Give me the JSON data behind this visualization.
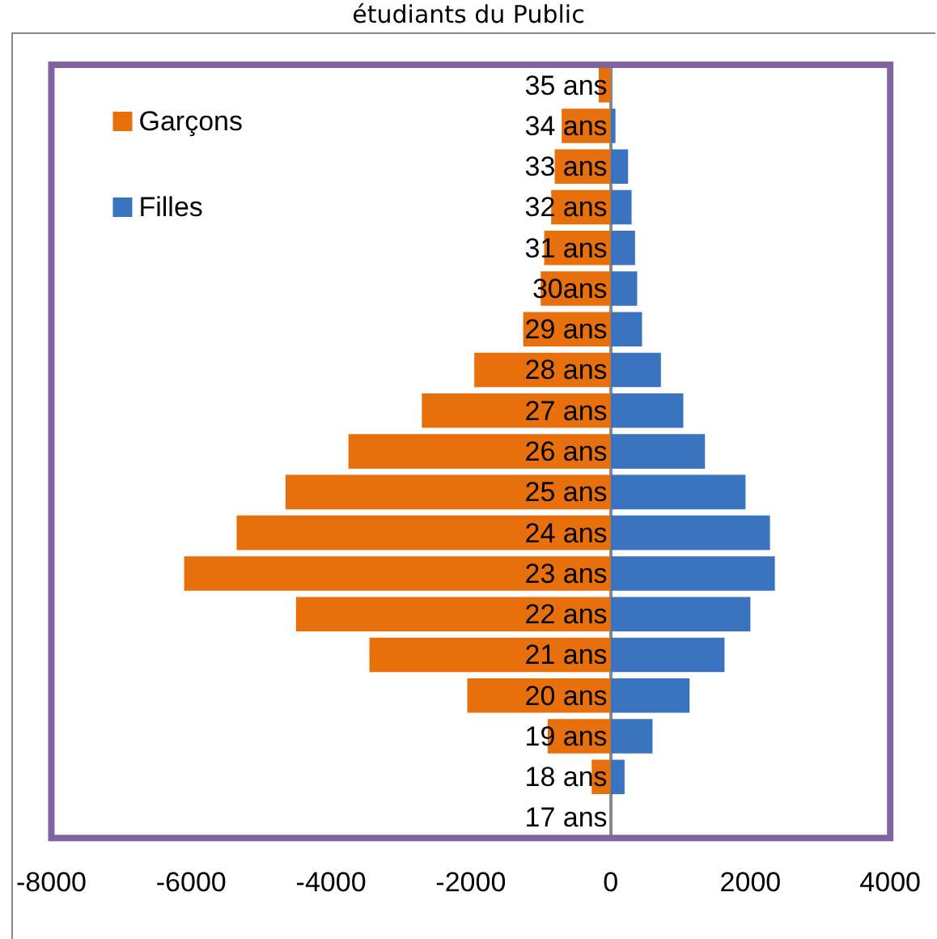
{
  "chart_data": {
    "type": "bar",
    "orientation": "horizontal",
    "stacked": true,
    "title": "étudiants du Public",
    "categories": [
      "35 ans",
      "34 ans",
      "33 ans",
      "32 ans",
      "31 ans",
      "30ans",
      "29 ans",
      "28 ans",
      "27 ans",
      "26 ans",
      "25 ans",
      "24 ans",
      "23 ans",
      "22 ans",
      "21 ans",
      "20 ans",
      "19 ans",
      "18 ans",
      "17 ans"
    ],
    "series": [
      {
        "name": "Garçons",
        "color": "#e8700c",
        "values": [
          -170,
          -700,
          -800,
          -850,
          -950,
          -1000,
          -1250,
          -1950,
          -2700,
          -3750,
          -4650,
          -5350,
          -6100,
          -4500,
          -3450,
          -2050,
          -900,
          -270,
          0
        ]
      },
      {
        "name": "Filles",
        "color": "#3a74c0",
        "values": [
          0,
          70,
          250,
          300,
          350,
          380,
          450,
          720,
          1040,
          1350,
          1930,
          2280,
          2350,
          2000,
          1630,
          1130,
          600,
          200,
          0
        ]
      }
    ],
    "xlim": [
      -8000,
      4000
    ],
    "xticks": [
      -8000,
      -6000,
      -4000,
      -2000,
      0,
      2000,
      4000
    ],
    "grid": false,
    "legend": "top left"
  }
}
